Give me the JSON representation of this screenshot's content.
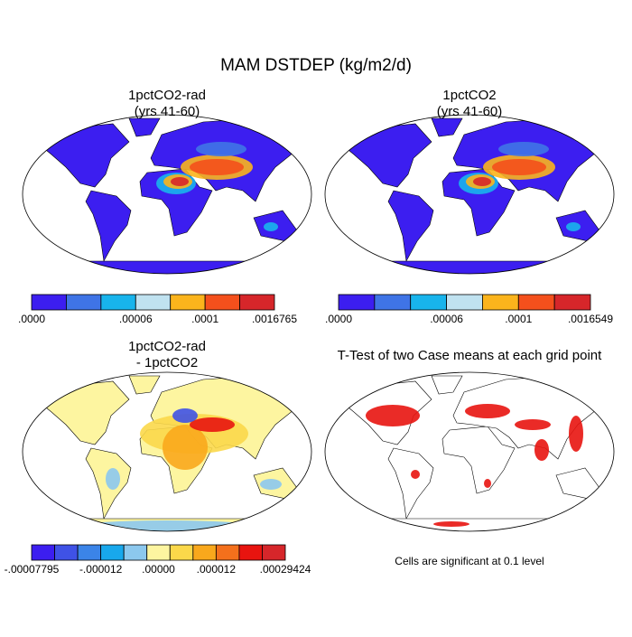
{
  "title": "MAM DSTDEP (kg/m2/d)",
  "panels": [
    {
      "title_lines": [
        "1pctCO2-rad",
        "(yrs 41-60)"
      ],
      "colorbar": {
        "colors": [
          "#3c1ef0",
          "#3f74e6",
          "#18b4ec",
          "#c0e2f0",
          "#fbb41c",
          "#f4501c",
          "#d6262a"
        ],
        "labels": [
          ".0000",
          ".00006",
          ".0001",
          ".0016765"
        ]
      }
    },
    {
      "title_lines": [
        "1pctCO2",
        "(yrs 41-60)"
      ],
      "colorbar": {
        "colors": [
          "#3c1ef0",
          "#3f74e6",
          "#18b4ec",
          "#c0e2f0",
          "#fbb41c",
          "#f4501c",
          "#d6262a"
        ],
        "labels": [
          ".0000",
          ".00006",
          ".0001",
          ".0016549"
        ]
      }
    },
    {
      "title_lines": [
        "1pctCO2-rad",
        "- 1pctCO2"
      ],
      "colorbar": {
        "colors": [
          "#3c1ef0",
          "#3f52e6",
          "#3b84e8",
          "#18a8ec",
          "#8cc8ee",
          "#fdf5a0",
          "#fbd84a",
          "#f9a81c",
          "#f4701c",
          "#e8140f",
          "#d6262a"
        ],
        "labels": [
          "-.00007795",
          "-.000012",
          ".00000",
          ".000012",
          ".00029424"
        ]
      }
    },
    {
      "title_lines": [
        "T-Test of two Case means at each grid point"
      ],
      "note": "Cells are significant at 0.1 level"
    }
  ]
}
